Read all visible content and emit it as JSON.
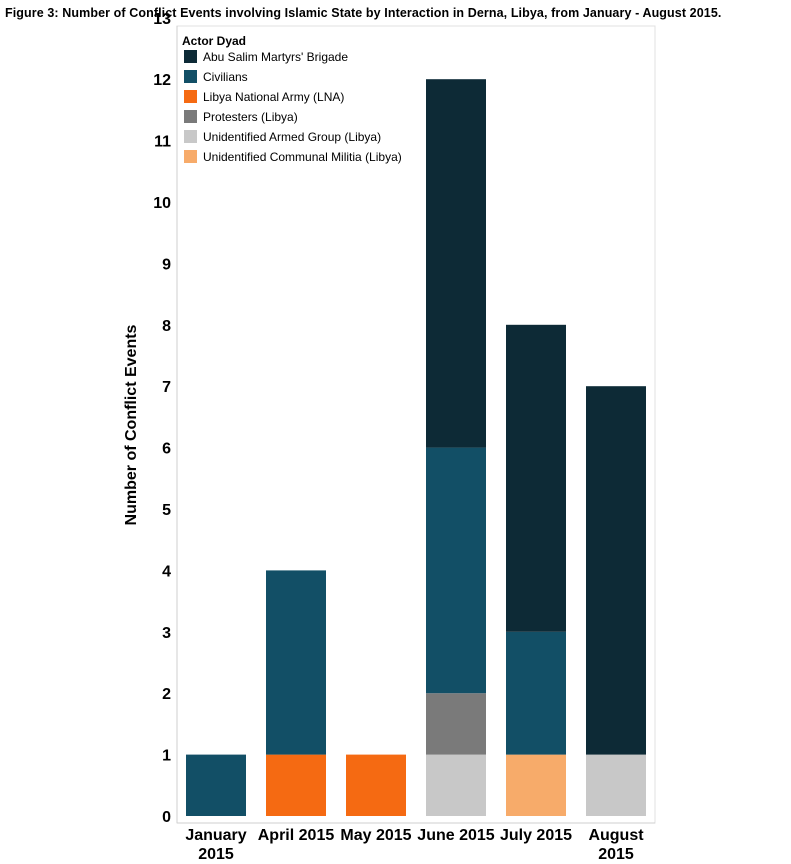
{
  "chart_data": {
    "type": "bar",
    "stacked": true,
    "title": "Figure 3: Number of Conflict Events involving Islamic State by Interaction in Derna, Libya, from January - August 2015.",
    "xlabel": "",
    "ylabel": "Number of Conflict Events",
    "ylim": [
      0,
      13
    ],
    "yticks": [
      0,
      1,
      2,
      3,
      4,
      5,
      6,
      7,
      8,
      9,
      10,
      11,
      12,
      13
    ],
    "grid": false,
    "legend_title": "Actor Dyad",
    "legend_placement": "top-left",
    "categories": [
      [
        "January",
        "2015"
      ],
      [
        "April 2015"
      ],
      [
        "May 2015"
      ],
      [
        "June 2015"
      ],
      [
        "July 2015"
      ],
      [
        "August",
        "2015"
      ]
    ],
    "stack_order": [
      "Unidentified Armed Group (Libya)",
      "Unidentified Communal Militia (Libya)",
      "Libya National Army (LNA)",
      "Protesters (Libya)",
      "Civilians",
      "Abu Salim Martyrs' Brigade"
    ],
    "series": [
      {
        "name": "Abu Salim Martyrs' Brigade",
        "color": "#0d2a36",
        "values": [
          0,
          0,
          0,
          6,
          5,
          6
        ]
      },
      {
        "name": "Civilians",
        "color": "#124f66",
        "values": [
          1,
          3,
          0,
          4,
          2,
          0
        ]
      },
      {
        "name": "Libya National Army (LNA)",
        "color": "#f56a12",
        "values": [
          0,
          1,
          1,
          0,
          0,
          0
        ]
      },
      {
        "name": "Protesters (Libya)",
        "color": "#7a7a7a",
        "values": [
          0,
          0,
          0,
          1,
          0,
          0
        ]
      },
      {
        "name": "Unidentified Armed Group (Libya)",
        "color": "#c8c8c8",
        "values": [
          0,
          0,
          0,
          1,
          0,
          1
        ]
      },
      {
        "name": "Unidentified Communal Militia (Libya)",
        "color": "#f7ab6a",
        "values": [
          0,
          0,
          0,
          0,
          1,
          0
        ]
      }
    ]
  }
}
